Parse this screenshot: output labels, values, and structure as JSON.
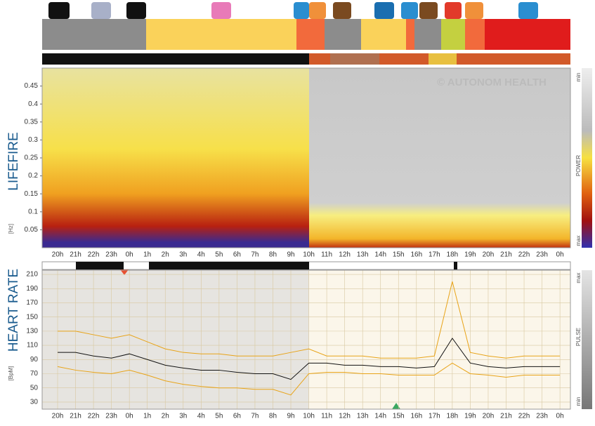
{
  "chart_data": [
    {
      "type": "heatmap",
      "title": "LIFEFIRE",
      "y_label": "[Hz]",
      "watermark": "© AUTONOM HEALTH",
      "colorbar_labels": [
        "min",
        "POWER",
        "max"
      ],
      "categories": [
        "20h",
        "21h",
        "22h",
        "23h",
        "0h",
        "1h",
        "2h",
        "3h",
        "4h",
        "5h",
        "6h",
        "7h",
        "8h",
        "9h",
        "10h",
        "11h",
        "12h",
        "13h",
        "14h",
        "15h",
        "16h",
        "17h",
        "18h",
        "19h",
        "20h",
        "21h",
        "22h",
        "23h",
        "0h"
      ],
      "ylim": [
        0,
        0.5
      ],
      "yticks": [
        0.05,
        0.1,
        0.15,
        0.2,
        0.25,
        0.3,
        0.35,
        0.4,
        0.45
      ]
    },
    {
      "type": "line",
      "title": "HEART RATE",
      "y_label": "[BpM]",
      "colorbar_labels": [
        "max",
        "PULSE",
        "min"
      ],
      "categories": [
        "20h",
        "21h",
        "22h",
        "23h",
        "0h",
        "1h",
        "2h",
        "3h",
        "4h",
        "5h",
        "6h",
        "7h",
        "8h",
        "9h",
        "10h",
        "11h",
        "12h",
        "13h",
        "14h",
        "15h",
        "16h",
        "17h",
        "18h",
        "19h",
        "20h",
        "21h",
        "22h",
        "23h",
        "0h"
      ],
      "ylim": [
        20,
        216
      ],
      "yticks": [
        30,
        50,
        70,
        90,
        110,
        130,
        150,
        170,
        190,
        210
      ],
      "grid": true,
      "series": [
        {
          "color": "#e8a317",
          "values": [
            130,
            130,
            125,
            120,
            125,
            115,
            105,
            100,
            98,
            98,
            95,
            95,
            95,
            100,
            105,
            95,
            95,
            95,
            92,
            92,
            92,
            95,
            200,
            100,
            95,
            92,
            95,
            95,
            95
          ]
        },
        {
          "color": "#111111",
          "values": [
            100,
            100,
            95,
            92,
            98,
            90,
            82,
            78,
            75,
            75,
            72,
            70,
            70,
            62,
            85,
            85,
            82,
            82,
            80,
            80,
            78,
            80,
            120,
            85,
            80,
            78,
            80,
            80,
            80
          ]
        },
        {
          "color": "#e8a317",
          "values": [
            80,
            75,
            72,
            70,
            75,
            68,
            60,
            55,
            52,
            50,
            50,
            48,
            48,
            40,
            70,
            72,
            72,
            70,
            70,
            68,
            68,
            68,
            85,
            70,
            68,
            65,
            68,
            68,
            68
          ]
        }
      ]
    }
  ]
}
